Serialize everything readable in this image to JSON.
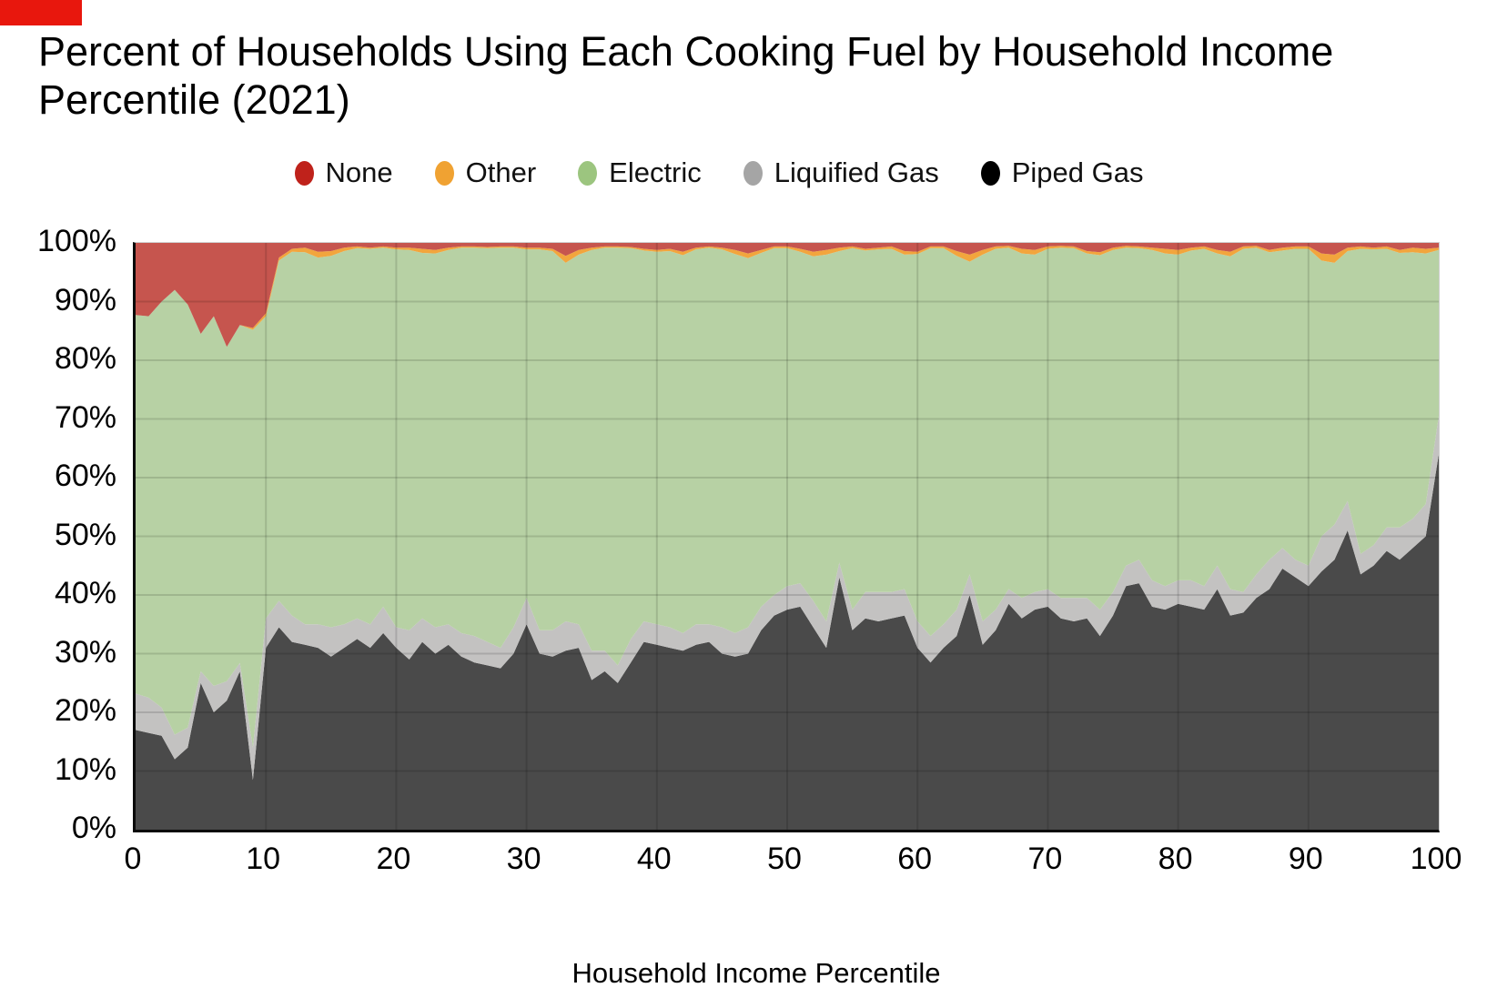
{
  "page": {
    "title": "Percent of Households Using Each Cooking Fuel by Household Income Percentile (2021)",
    "corner_marker_color": "#e8170d"
  },
  "legend": {
    "items": [
      {
        "label": "None",
        "color": "#bf221b"
      },
      {
        "label": "Other",
        "color": "#f0a232"
      },
      {
        "label": "Electric",
        "color": "#9cc57f"
      },
      {
        "label": "Liquified Gas",
        "color": "#a5a5a5"
      },
      {
        "label": "Piped Gas",
        "color": "#000000"
      }
    ]
  },
  "axes": {
    "y_ticks": [
      "100%",
      "90%",
      "80%",
      "70%",
      "60%",
      "50%",
      "40%",
      "30%",
      "20%",
      "10%",
      "0%"
    ],
    "x_ticks": [
      "0",
      "10",
      "20",
      "30",
      "40",
      "50",
      "60",
      "70",
      "80",
      "90",
      "100"
    ],
    "x_title": "Household Income Percentile"
  },
  "chart_data": {
    "type": "area",
    "stacked": true,
    "units": "percent of households",
    "title": "Percent of Households Using Each Cooking Fuel by Household Income Percentile (2021)",
    "xlabel": "Household Income Percentile",
    "ylabel": "",
    "xlim": [
      0,
      100
    ],
    "ylim_percent": [
      0,
      100
    ],
    "x_start": 0,
    "x_step": 1,
    "legend_position": "top",
    "grid": true,
    "stack_order_bottom_to_top": [
      "Piped Gas",
      "Liquified Gas",
      "Electric",
      "Other",
      "None"
    ],
    "series": [
      {
        "name": "Piped Gas",
        "color": "#4a4a4a",
        "values": [
          17,
          16.5,
          16,
          12,
          14,
          25,
          20,
          22,
          27,
          8.5,
          31,
          34.5,
          32,
          31.5,
          31,
          29.5,
          31,
          32.5,
          31,
          33.5,
          31,
          29,
          32,
          30,
          31.5,
          29.5,
          28.5,
          28,
          27.5,
          30,
          35,
          30,
          29.5,
          30.5,
          31,
          25.5,
          27,
          25,
          28.5,
          32,
          31.5,
          31,
          30.5,
          31.5,
          32,
          30,
          29.5,
          30,
          34,
          36.5,
          37.5,
          38,
          34.5,
          31,
          43,
          34,
          36,
          35.5,
          36,
          36.5,
          31,
          28.5,
          31,
          33,
          40,
          31.5,
          34,
          38.5,
          36,
          37.5,
          38,
          36,
          35.5,
          36,
          33,
          36.5,
          41.5,
          42,
          38,
          37.5,
          38.5,
          38,
          37.5,
          41,
          36.5,
          37,
          39.5,
          41,
          44.5,
          43,
          41.5,
          44,
          46,
          51,
          43.5,
          45,
          47.5,
          46,
          48,
          50,
          64
        ]
      },
      {
        "name": "Liquified Gas",
        "color": "#c3c2c1",
        "values": [
          6.2,
          6,
          4.8,
          4.2,
          3.4,
          2,
          4.5,
          3.3,
          1.4,
          5.5,
          5,
          4.5,
          4.5,
          3.5,
          4,
          5,
          4,
          3.5,
          4,
          4.5,
          3.5,
          5,
          4,
          4.5,
          3.5,
          4,
          4.5,
          4,
          3.5,
          4.5,
          4.5,
          4,
          4.5,
          5,
          4,
          5,
          3.5,
          3,
          4,
          3.5,
          3.5,
          3.5,
          3,
          3.5,
          3,
          4.5,
          4,
          4.5,
          4,
          3.5,
          4,
          4,
          4.5,
          4.5,
          2.5,
          3.5,
          4.5,
          5,
          4.5,
          4.5,
          4.5,
          4.5,
          4,
          4.5,
          3.5,
          4,
          3.5,
          2.5,
          3.5,
          3,
          3,
          3.5,
          4,
          3.5,
          4.5,
          4,
          3.5,
          4,
          4.5,
          4,
          4,
          4.5,
          4,
          4,
          4.5,
          3.5,
          4,
          5,
          3.5,
          3,
          3.5,
          6,
          6,
          5,
          3.5,
          3.5,
          4,
          5.5,
          5,
          5.5,
          6.5
        ]
      },
      {
        "name": "Electric",
        "color": "#b7d1a4",
        "derived": "remainder: 100 minus sum of all other series at each x"
      },
      {
        "name": "Other",
        "color": "#f2a53d",
        "values": [
          0,
          0,
          0,
          0,
          0,
          0,
          0,
          0,
          0,
          0.3,
          0.5,
          0.5,
          0.5,
          0.8,
          1,
          0.8,
          0.6,
          0.3,
          0.2,
          0.2,
          0.3,
          0.4,
          0.7,
          0.6,
          0.4,
          0.2,
          0.2,
          0.2,
          0.2,
          0.2,
          0.3,
          0.3,
          0.4,
          1.2,
          0.8,
          0.4,
          0.2,
          0.2,
          0.2,
          0.3,
          0.3,
          0.4,
          0.6,
          0.3,
          0.2,
          0.3,
          0.7,
          0.8,
          0.5,
          0.3,
          0.3,
          0.5,
          0.8,
          0.8,
          0.6,
          0.3,
          0.3,
          0.3,
          0.4,
          0.6,
          0.4,
          0.3,
          0.3,
          0.8,
          1.2,
          0.8,
          0.4,
          0.3,
          0.8,
          0.8,
          0.4,
          0.3,
          0.3,
          0.4,
          0.5,
          0.4,
          0.3,
          0.3,
          0.4,
          0.8,
          0.8,
          0.5,
          0.4,
          0.6,
          0.8,
          0.4,
          0.3,
          0.4,
          0.5,
          0.4,
          0.4,
          1.2,
          1.4,
          0.6,
          0.4,
          0.3,
          0.4,
          0.5,
          0.8,
          0.8,
          0.4
        ]
      },
      {
        "name": "None",
        "color": "#c6554e",
        "values": [
          12.3,
          12.5,
          10,
          8,
          10.5,
          15.5,
          12.5,
          17.7,
          14,
          14.5,
          12,
          2.5,
          1,
          0.8,
          1.5,
          1.4,
          0.8,
          0.6,
          0.8,
          0.6,
          0.8,
          0.8,
          1,
          1.2,
          0.8,
          0.6,
          0.6,
          0.7,
          0.6,
          0.6,
          0.8,
          0.8,
          1,
          2.2,
          1.2,
          0.8,
          0.6,
          0.6,
          0.7,
          1,
          1.2,
          1,
          1.5,
          0.8,
          0.6,
          0.8,
          1.2,
          1.8,
          1.2,
          0.6,
          0.6,
          1,
          1.5,
          1.2,
          0.8,
          0.6,
          1,
          0.8,
          0.6,
          1.4,
          1.5,
          0.6,
          0.6,
          1.4,
          2,
          1.2,
          0.6,
          0.5,
          1,
          1.2,
          0.6,
          0.5,
          0.6,
          1.4,
          1.6,
          0.8,
          0.5,
          0.6,
          0.8,
          1,
          1.2,
          0.8,
          0.6,
          1.2,
          1.5,
          0.6,
          0.5,
          1.2,
          0.8,
          0.6,
          0.6,
          1.8,
          2,
          0.8,
          0.6,
          0.8,
          0.6,
          1.2,
          0.8,
          1,
          0.8
        ]
      }
    ],
    "style": {
      "gridline_color": "rgba(0,0,0,0.13)",
      "axis_color": "#0a0a0a",
      "plot_border_color": "#cfcfcf"
    }
  }
}
